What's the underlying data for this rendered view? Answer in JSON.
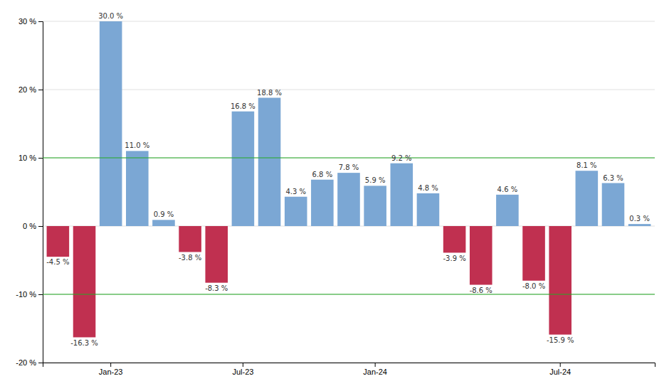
{
  "chart_data": {
    "type": "bar",
    "categories": [
      null,
      null,
      "Jan-23",
      null,
      null,
      null,
      null,
      "Jul-23",
      null,
      null,
      null,
      null,
      "Jan-24",
      null,
      null,
      null,
      null,
      null,
      null,
      "Jul-24",
      null,
      null,
      null
    ],
    "values": [
      -4.5,
      -16.3,
      30.0,
      11.0,
      0.9,
      -3.8,
      -8.3,
      16.8,
      18.8,
      4.3,
      6.8,
      7.8,
      5.9,
      9.2,
      4.8,
      -3.9,
      -8.6,
      4.6,
      -8.0,
      -15.9,
      8.1,
      6.3,
      0.3
    ],
    "value_labels": [
      "-4.5 %",
      "-16.3 %",
      "30.0 %",
      "11.0 %",
      "0.9 %",
      "-3.8 %",
      "-8.3 %",
      "16.8 %",
      "18.8 %",
      "4.3 %",
      "6.8 %",
      "7.8 %",
      "5.9 %",
      "9.2 %",
      "4.8 %",
      "-3.9 %",
      "-8.6 %",
      "4.6 %",
      "-8.0 %",
      "-15.9 %",
      "8.1 %",
      "6.3 %",
      "0.3 %"
    ],
    "colors": [
      "#c03050",
      "#c03050",
      "#7ba7d4",
      "#7ba7d4",
      "#7ba7d4",
      "#c03050",
      "#c03050",
      "#7ba7d4",
      "#7ba7d4",
      "#7ba7d4",
      "#7ba7d4",
      "#7ba7d4",
      "#7ba7d4",
      "#7ba7d4",
      "#7ba7d4",
      "#c03050",
      "#c03050",
      "#7ba7d4",
      "#c03050",
      "#c03050",
      "#7ba7d4",
      "#7ba7d4",
      "#7ba7d4"
    ],
    "ylim": [
      -20,
      30
    ],
    "yticks": [
      {
        "value": -20,
        "label": "-20 %"
      },
      {
        "value": -10,
        "label": "-10 %"
      },
      {
        "value": 0,
        "label": "0 %"
      },
      {
        "value": 10,
        "label": "10 %"
      },
      {
        "value": 20,
        "label": "20 %"
      },
      {
        "value": 30,
        "label": "30 %"
      }
    ],
    "reference_lines": [
      {
        "value": 10,
        "color": "#22aa22"
      },
      {
        "value": -10,
        "color": "#22aa22"
      }
    ],
    "grid": true,
    "data_labels": true
  }
}
